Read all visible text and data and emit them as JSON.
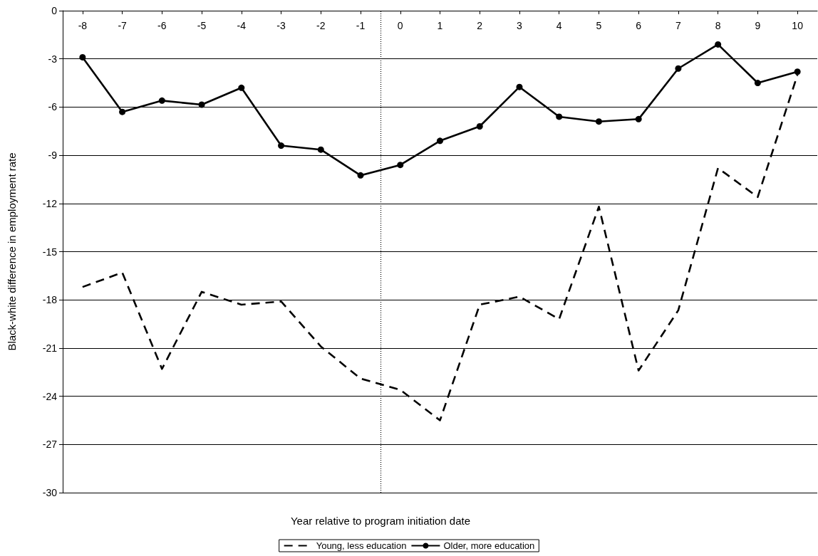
{
  "chart_data": {
    "type": "line",
    "xlabel": "Year relative to program initiation date",
    "ylabel": "Black-white difference in employment rate",
    "x": [
      -8,
      -7,
      -6,
      -5,
      -4,
      -3,
      -2,
      -1,
      0,
      1,
      2,
      3,
      4,
      5,
      6,
      7,
      8,
      9,
      10
    ],
    "xlim": [
      -8.5,
      10.5
    ],
    "xticks": [
      -8,
      -7,
      -6,
      -5,
      -4,
      -3,
      -2,
      -1,
      0,
      1,
      2,
      3,
      4,
      5,
      6,
      7,
      8,
      9,
      10
    ],
    "ylim": [
      -30,
      0
    ],
    "yticks": [
      -30,
      -27,
      -24,
      -21,
      -18,
      -15,
      -12,
      -9,
      -6,
      -3,
      0
    ],
    "grid": "y",
    "legend": "bottom",
    "ref_lines": [
      {
        "axis": "x",
        "value": -0.5,
        "line_style": "dotted",
        "color": "#000000"
      }
    ],
    "series": [
      {
        "name": "Young, less education",
        "color": "#000000",
        "line_style": "dashed",
        "marker": "none",
        "values": [
          -17.2,
          -16.3,
          -22.3,
          -17.5,
          -18.3,
          -18.1,
          -20.9,
          -22.9,
          -23.6,
          -25.5,
          -18.3,
          -17.8,
          -19.2,
          -12.2,
          -22.4,
          -18.65,
          -9.8,
          -11.6,
          -4.0
        ]
      },
      {
        "name": "Older, more education",
        "color": "#000000",
        "line_style": "solid",
        "marker": "circle",
        "values": [
          -2.9,
          -6.3,
          -5.6,
          -5.85,
          -4.8,
          -8.4,
          -8.65,
          -10.25,
          -9.6,
          -8.1,
          -7.2,
          -4.75,
          -6.6,
          -6.9,
          -6.75,
          -3.6,
          -2.1,
          -4.5,
          -3.8
        ]
      }
    ]
  }
}
